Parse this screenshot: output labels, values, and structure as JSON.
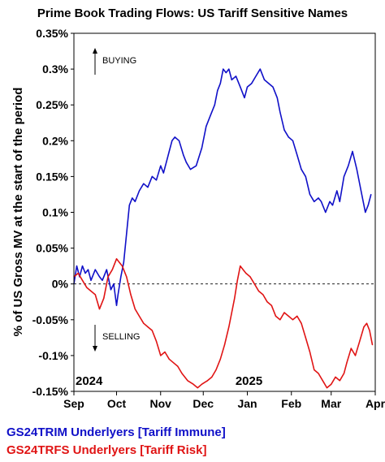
{
  "chart_data": {
    "type": "line",
    "title": "Prime Book Trading Flows: US Tariff Sensitive Names",
    "ylabel": "% of US Gross MV at the start of the period",
    "ylim": [
      -0.15,
      0.35
    ],
    "y_ticks": [
      "0.35%",
      "0.3%",
      "0.25%",
      "0.2%",
      "0.15%",
      "0.1%",
      "0.05%",
      "0%",
      "-0.05%",
      "-0.1%",
      "-0.15%"
    ],
    "y_tick_values": [
      0.35,
      0.3,
      0.25,
      0.2,
      0.15,
      0.1,
      0.05,
      0,
      -0.05,
      -0.1,
      -0.15
    ],
    "x_range": [
      "2024-09-01",
      "2025-04-01"
    ],
    "x_ticks": [
      {
        "label": "Sep",
        "date": "2024-09-01"
      },
      {
        "label": "Oct",
        "date": "2024-10-01"
      },
      {
        "label": "Nov",
        "date": "2024-11-01"
      },
      {
        "label": "Dec",
        "date": "2024-12-01"
      },
      {
        "label": "Jan",
        "date": "2025-01-01"
      },
      {
        "label": "Feb",
        "date": "2025-02-01"
      },
      {
        "label": "Mar",
        "date": "2025-03-01"
      },
      {
        "label": "Apr",
        "date": "2025-04-01"
      }
    ],
    "year_labels": [
      {
        "label": "2024",
        "date": "2024-09-01"
      },
      {
        "label": "2025",
        "date": "2025-01-01"
      }
    ],
    "annotations": {
      "buying": "BUYING",
      "selling": "SELLING"
    },
    "zero_line": "dashed",
    "series": [
      {
        "name": "GS24TRIM Underlyers [Tariff Immune]",
        "color": "#1010c8",
        "points": [
          [
            "2024-09-01",
            0.0
          ],
          [
            "2024-09-03",
            0.025
          ],
          [
            "2024-09-05",
            0.01
          ],
          [
            "2024-09-07",
            0.025
          ],
          [
            "2024-09-09",
            0.015
          ],
          [
            "2024-09-11",
            0.02
          ],
          [
            "2024-09-13",
            0.005
          ],
          [
            "2024-09-16",
            0.02
          ],
          [
            "2024-09-19",
            0.01
          ],
          [
            "2024-09-21",
            0.005
          ],
          [
            "2024-09-24",
            0.02
          ],
          [
            "2024-09-27",
            -0.008
          ],
          [
            "2024-09-29",
            0.0
          ],
          [
            "2024-10-01",
            -0.03
          ],
          [
            "2024-10-02",
            -0.015
          ],
          [
            "2024-10-04",
            0.01
          ],
          [
            "2024-10-06",
            0.03
          ],
          [
            "2024-10-08",
            0.07
          ],
          [
            "2024-10-10",
            0.11
          ],
          [
            "2024-10-12",
            0.12
          ],
          [
            "2024-10-14",
            0.115
          ],
          [
            "2024-10-17",
            0.13
          ],
          [
            "2024-10-20",
            0.14
          ],
          [
            "2024-10-23",
            0.135
          ],
          [
            "2024-10-26",
            0.15
          ],
          [
            "2024-10-29",
            0.145
          ],
          [
            "2024-11-01",
            0.165
          ],
          [
            "2024-11-03",
            0.155
          ],
          [
            "2024-11-05",
            0.17
          ],
          [
            "2024-11-07",
            0.185
          ],
          [
            "2024-11-09",
            0.2
          ],
          [
            "2024-11-11",
            0.205
          ],
          [
            "2024-11-14",
            0.2
          ],
          [
            "2024-11-17",
            0.18
          ],
          [
            "2024-11-19",
            0.17
          ],
          [
            "2024-11-22",
            0.16
          ],
          [
            "2024-11-26",
            0.165
          ],
          [
            "2024-11-30",
            0.19
          ],
          [
            "2024-12-03",
            0.22
          ],
          [
            "2024-12-06",
            0.235
          ],
          [
            "2024-12-09",
            0.25
          ],
          [
            "2024-12-11",
            0.27
          ],
          [
            "2024-12-13",
            0.28
          ],
          [
            "2024-12-15",
            0.3
          ],
          [
            "2024-12-17",
            0.295
          ],
          [
            "2024-12-19",
            0.3
          ],
          [
            "2024-12-21",
            0.285
          ],
          [
            "2024-12-24",
            0.29
          ],
          [
            "2024-12-27",
            0.275
          ],
          [
            "2024-12-30",
            0.26
          ],
          [
            "2025-01-01",
            0.275
          ],
          [
            "2025-01-04",
            0.28
          ],
          [
            "2025-01-07",
            0.29
          ],
          [
            "2025-01-10",
            0.3
          ],
          [
            "2025-01-13",
            0.285
          ],
          [
            "2025-01-16",
            0.28
          ],
          [
            "2025-01-19",
            0.275
          ],
          [
            "2025-01-22",
            0.26
          ],
          [
            "2025-01-24",
            0.24
          ],
          [
            "2025-01-27",
            0.215
          ],
          [
            "2025-01-30",
            0.205
          ],
          [
            "2025-02-02",
            0.2
          ],
          [
            "2025-02-05",
            0.18
          ],
          [
            "2025-02-08",
            0.16
          ],
          [
            "2025-02-11",
            0.15
          ],
          [
            "2025-02-14",
            0.125
          ],
          [
            "2025-02-17",
            0.115
          ],
          [
            "2025-02-20",
            0.12
          ],
          [
            "2025-02-22",
            0.115
          ],
          [
            "2025-02-25",
            0.1
          ],
          [
            "2025-02-28",
            0.115
          ],
          [
            "2025-03-02",
            0.11
          ],
          [
            "2025-03-05",
            0.13
          ],
          [
            "2025-03-07",
            0.115
          ],
          [
            "2025-03-10",
            0.15
          ],
          [
            "2025-03-13",
            0.165
          ],
          [
            "2025-03-16",
            0.185
          ],
          [
            "2025-03-19",
            0.16
          ],
          [
            "2025-03-22",
            0.13
          ],
          [
            "2025-03-25",
            0.1
          ],
          [
            "2025-03-27",
            0.11
          ],
          [
            "2025-03-29",
            0.125
          ]
        ]
      },
      {
        "name": "GS24TRFS Underlyers [Tariff Risk]",
        "color": "#e01414",
        "points": [
          [
            "2024-09-01",
            0.01
          ],
          [
            "2024-09-04",
            0.015
          ],
          [
            "2024-09-07",
            0.005
          ],
          [
            "2024-09-10",
            -0.005
          ],
          [
            "2024-09-13",
            -0.01
          ],
          [
            "2024-09-16",
            -0.015
          ],
          [
            "2024-09-19",
            -0.035
          ],
          [
            "2024-09-22",
            -0.02
          ],
          [
            "2024-09-25",
            0.01
          ],
          [
            "2024-09-28",
            0.02
          ],
          [
            "2024-10-01",
            0.035
          ],
          [
            "2024-10-03",
            0.03
          ],
          [
            "2024-10-05",
            0.025
          ],
          [
            "2024-10-08",
            0.01
          ],
          [
            "2024-10-11",
            -0.015
          ],
          [
            "2024-10-14",
            -0.035
          ],
          [
            "2024-10-17",
            -0.045
          ],
          [
            "2024-10-20",
            -0.055
          ],
          [
            "2024-10-23",
            -0.06
          ],
          [
            "2024-10-26",
            -0.065
          ],
          [
            "2024-10-29",
            -0.08
          ],
          [
            "2024-11-01",
            -0.1
          ],
          [
            "2024-11-04",
            -0.095
          ],
          [
            "2024-11-07",
            -0.105
          ],
          [
            "2024-11-10",
            -0.11
          ],
          [
            "2024-11-13",
            -0.115
          ],
          [
            "2024-11-16",
            -0.125
          ],
          [
            "2024-11-20",
            -0.135
          ],
          [
            "2024-11-24",
            -0.14
          ],
          [
            "2024-11-27",
            -0.145
          ],
          [
            "2024-11-30",
            -0.14
          ],
          [
            "2024-12-04",
            -0.135
          ],
          [
            "2024-12-07",
            -0.13
          ],
          [
            "2024-12-10",
            -0.12
          ],
          [
            "2024-12-13",
            -0.105
          ],
          [
            "2024-12-16",
            -0.085
          ],
          [
            "2024-12-19",
            -0.06
          ],
          [
            "2024-12-21",
            -0.04
          ],
          [
            "2024-12-23",
            -0.02
          ],
          [
            "2024-12-25",
            0.005
          ],
          [
            "2024-12-27",
            0.025
          ],
          [
            "2024-12-29",
            0.02
          ],
          [
            "2024-12-31",
            0.015
          ],
          [
            "2025-01-03",
            0.01
          ],
          [
            "2025-01-06",
            0.0
          ],
          [
            "2025-01-09",
            -0.01
          ],
          [
            "2025-01-12",
            -0.015
          ],
          [
            "2025-01-15",
            -0.025
          ],
          [
            "2025-01-18",
            -0.03
          ],
          [
            "2025-01-21",
            -0.045
          ],
          [
            "2025-01-24",
            -0.05
          ],
          [
            "2025-01-27",
            -0.04
          ],
          [
            "2025-01-30",
            -0.045
          ],
          [
            "2025-02-02",
            -0.05
          ],
          [
            "2025-02-05",
            -0.045
          ],
          [
            "2025-02-08",
            -0.055
          ],
          [
            "2025-02-11",
            -0.075
          ],
          [
            "2025-02-14",
            -0.095
          ],
          [
            "2025-02-17",
            -0.12
          ],
          [
            "2025-02-20",
            -0.125
          ],
          [
            "2025-02-23",
            -0.135
          ],
          [
            "2025-02-26",
            -0.145
          ],
          [
            "2025-03-01",
            -0.14
          ],
          [
            "2025-03-04",
            -0.13
          ],
          [
            "2025-03-07",
            -0.135
          ],
          [
            "2025-03-10",
            -0.125
          ],
          [
            "2025-03-12",
            -0.11
          ],
          [
            "2025-03-15",
            -0.09
          ],
          [
            "2025-03-18",
            -0.1
          ],
          [
            "2025-03-21",
            -0.08
          ],
          [
            "2025-03-24",
            -0.06
          ],
          [
            "2025-03-26",
            -0.055
          ],
          [
            "2025-03-28",
            -0.065
          ],
          [
            "2025-03-30",
            -0.085
          ]
        ]
      }
    ]
  }
}
